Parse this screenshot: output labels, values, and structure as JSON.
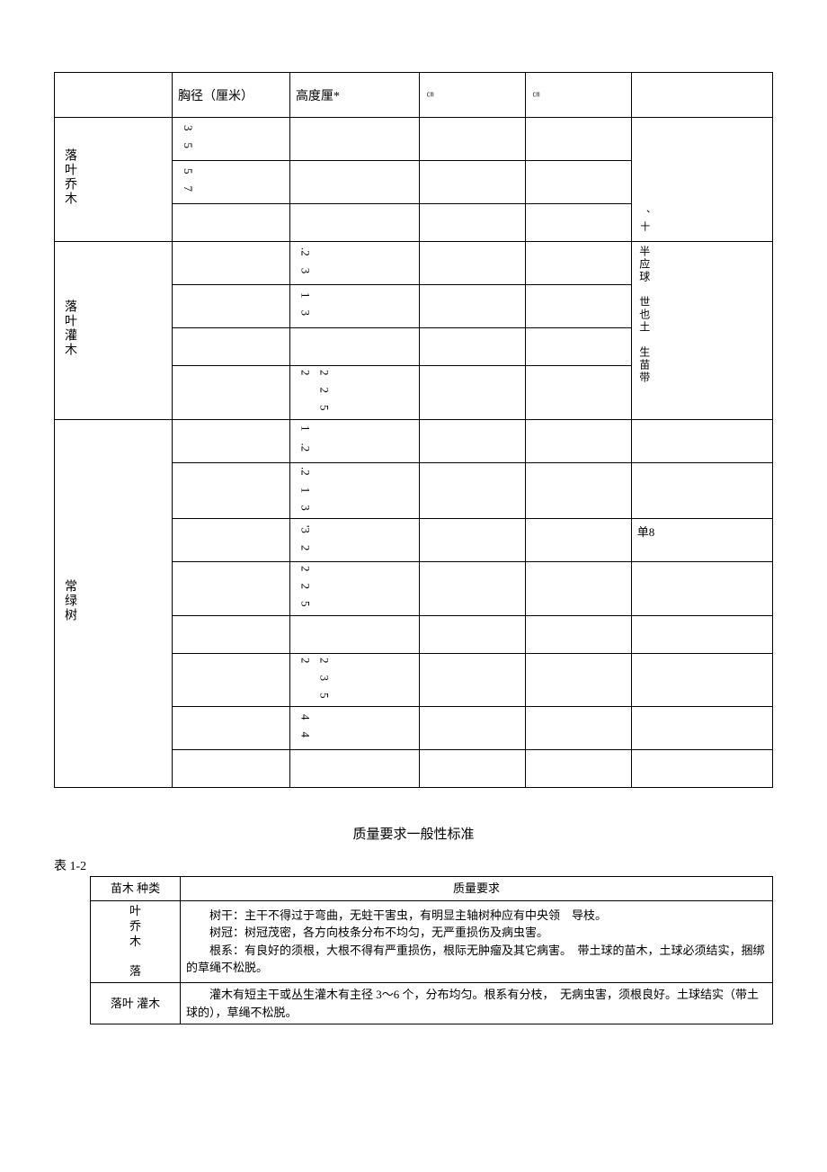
{
  "table1": {
    "header": {
      "col2": "胸径（厘米）",
      "col3": "高度厘*",
      "col4_tiny": "㎝",
      "col5_tiny": "㎝"
    },
    "categories": {
      "cat1": "落叶乔木",
      "cat2": "落叶灌木",
      "cat3": "常绿树"
    },
    "cat1_rows": {
      "r1_col2": "3　5",
      "r2_col2": "5　7"
    },
    "cat2_rows": {
      "r1_col3": ".2　3",
      "r2_col3": "1　3",
      "r4_col3": "2　2　5\n2"
    },
    "cat3_rows": {
      "r1_col3": "1　.2",
      "r2_col3": ".2　1　3",
      "r3_col3": "'3　2",
      "r4_col3": "2　2　5",
      "r6_col3": "2　3　5\n2",
      "r7_col3": "4　4"
    },
    "side_text1": "、十",
    "side_text2": "半应球　世也土　生苗带",
    "side_text3": "单8"
  },
  "section_title": "质量要求一般性标准",
  "table2": {
    "label": "表 1-2",
    "header": {
      "col1": "苗木 种类",
      "col2": "质量要求"
    },
    "rows": [
      {
        "col1_lines": [
          "叶",
          "乔",
          "木",
          "",
          "落"
        ],
        "col2_p1": "树干：主干不得过于弯曲，无蛀干害虫，有明显主轴树种应有中央领　导枝。",
        "col2_p2": "树冠：树冠茂密，各方向枝条分布不均匀，无严重损伤及病虫害。",
        "col2_p3": "根系：有良好的须根，大根不得有严重损伤，根际无肿瘤及其它病害。　带土球的苗木，土球必须结实，捆绑的草绳不松脱。"
      },
      {
        "col1": "落叶 灌木",
        "col2": "灌木有短主干或丛生灌木有主径 3～6 个，分布均匀。根系有分枝，　无病虫害，须根良好。土球结实（带土球的），草绳不松脱。"
      }
    ]
  }
}
